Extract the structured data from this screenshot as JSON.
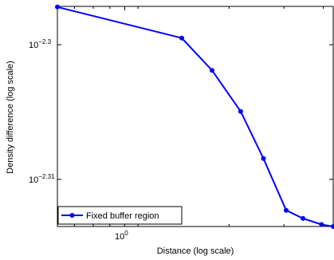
{
  "chart_data": {
    "type": "line",
    "title": "",
    "xlabel": "Distance (log scale)",
    "ylabel": "Density difference (log scale)",
    "x_scale": "log",
    "y_scale": "log",
    "xlim": [
      0.62,
      4.4
    ],
    "y_exponent_lim": [
      -2.3135,
      -2.29715
    ],
    "x_ticks": [
      {
        "value": 1,
        "base": "10",
        "exp": "0"
      }
    ],
    "y_ticks": [
      {
        "value_exp": -2.3,
        "base": "10",
        "exp": "−2.3"
      },
      {
        "value_exp": -2.31,
        "base": "10",
        "exp": "−2.31"
      }
    ],
    "grid": false,
    "legend_position": "bottom-left",
    "series": [
      {
        "name": "Fixed buffer region",
        "color": "#0000ff",
        "marker": "circle",
        "x": [
          0.62,
          1.5,
          1.86,
          2.28,
          2.68,
          3.15,
          3.55,
          4.05,
          4.4
        ],
        "y_exponent": [
          -2.2972,
          -2.2995,
          -2.3019,
          -2.30495,
          -2.30845,
          -2.3123,
          -2.3129,
          -2.31335,
          -2.3135
        ]
      }
    ]
  }
}
